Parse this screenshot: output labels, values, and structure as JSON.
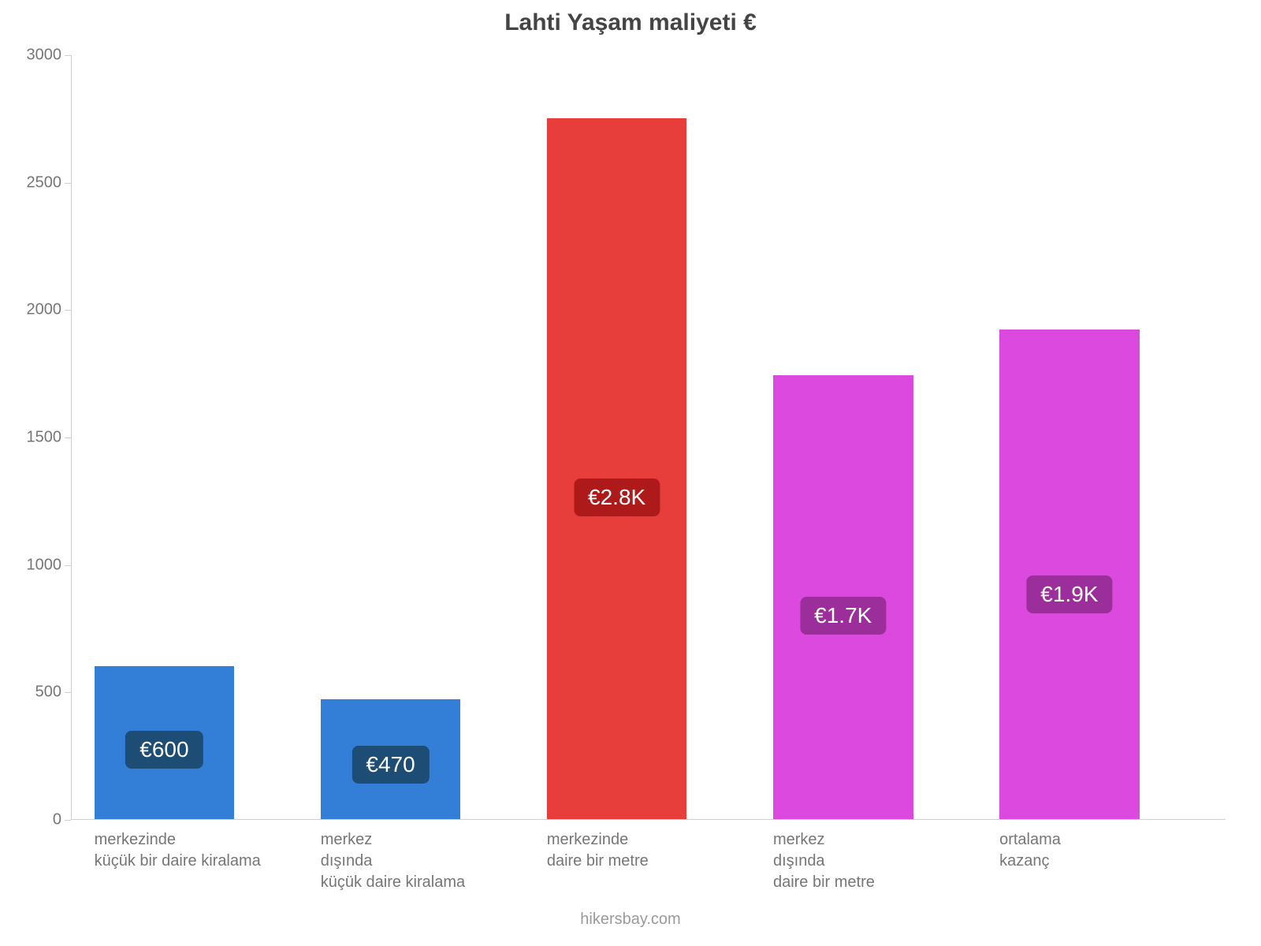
{
  "chart": {
    "type": "bar",
    "title": "Lahti Yaşam maliyeti €",
    "title_fontsize": 30,
    "title_color": "#444444",
    "background_color": "#ffffff",
    "axis_color": "#cfcfcf",
    "tick_label_color": "#767676",
    "tick_label_fontsize": 20,
    "xlabel_fontsize": 20,
    "badge_fontsize": 28,
    "ylim": [
      0,
      3000
    ],
    "yticks": [
      0,
      500,
      1000,
      1500,
      2000,
      2500,
      3000
    ],
    "bar_width_pct": 12.0,
    "bar_gap_pct": 7.4,
    "bar_left_offset_pct": 2.0,
    "bars": [
      {
        "key": "b0",
        "value": 600,
        "label": "€600",
        "color": "#337ed6",
        "badge_color": "#1d4d75",
        "xlabel": "merkezinde\nküçük bir daire kiralama"
      },
      {
        "key": "b1",
        "value": 470,
        "label": "€470",
        "color": "#337ed6",
        "badge_color": "#1d4d75",
        "xlabel": "merkez\ndışında\nküçük daire kiralama"
      },
      {
        "key": "b2",
        "value": 2750,
        "label": "€2.8K",
        "color": "#e73d3b",
        "badge_color": "#ae1a1a",
        "xlabel": "merkezinde\ndaire bir metre"
      },
      {
        "key": "b3",
        "value": 1740,
        "label": "€1.7K",
        "color": "#dc49de",
        "badge_color": "#9b2e9b",
        "xlabel": "merkez\ndışında\ndaire bir metre"
      },
      {
        "key": "b4",
        "value": 1920,
        "label": "€1.9K",
        "color": "#dc49de",
        "badge_color": "#9b2e9b",
        "xlabel": "ortalama\nkazanç"
      }
    ]
  },
  "footer": {
    "text": "hikersbay.com",
    "fontsize": 20,
    "color": "#9a9a9a"
  }
}
